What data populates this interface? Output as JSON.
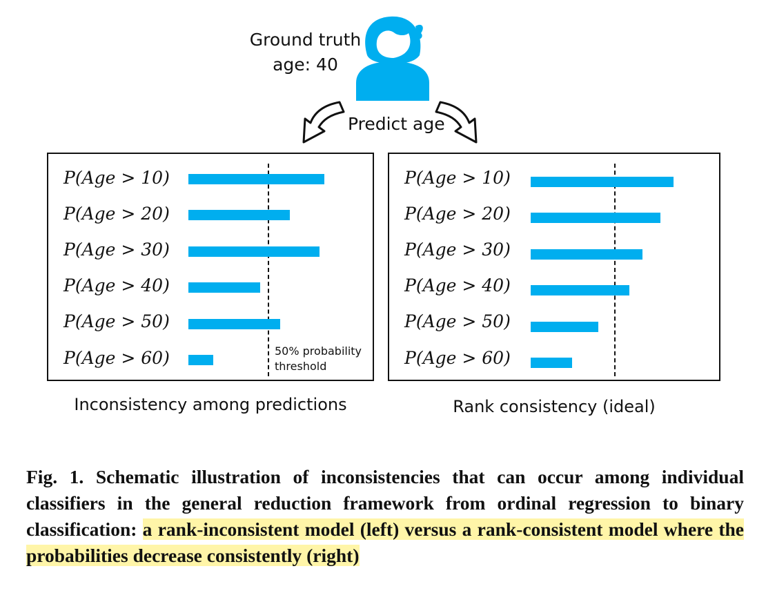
{
  "header": {
    "ground_truth_line1": "Ground truth",
    "ground_truth_line2": "age: 40",
    "predict_label": "Predict age"
  },
  "icons": {
    "person": "person-icon",
    "arrow_left": "curved-arrow-down-left-icon",
    "arrow_right": "curved-arrow-down-right-icon"
  },
  "colors": {
    "bar": "#00aeef",
    "highlight": "#fff5a8"
  },
  "panels": {
    "left": {
      "caption": "Inconsistency among predictions",
      "threshold_note_line1": "50% probability",
      "threshold_note_line2": "threshold",
      "rows": [
        {
          "label": "P(Age > 10)"
        },
        {
          "label": "P(Age > 20)"
        },
        {
          "label": "P(Age > 30)"
        },
        {
          "label": "P(Age > 40)"
        },
        {
          "label": "P(Age > 50)"
        },
        {
          "label": "P(Age > 60)"
        }
      ]
    },
    "right": {
      "caption": "Rank consistency (ideal)",
      "rows": [
        {
          "label": "P(Age > 10)"
        },
        {
          "label": "P(Age > 20)"
        },
        {
          "label": "P(Age > 30)"
        },
        {
          "label": "P(Age > 40)"
        },
        {
          "label": "P(Age > 50)"
        },
        {
          "label": "P(Age > 60)"
        }
      ]
    }
  },
  "chart_data": [
    {
      "type": "bar",
      "orientation": "horizontal",
      "categories": [
        "P(Age > 10)",
        "P(Age > 20)",
        "P(Age > 30)",
        "P(Age > 40)",
        "P(Age > 50)",
        "P(Age > 60)"
      ],
      "values": [
        0.87,
        0.65,
        0.84,
        0.46,
        0.59,
        0.16
      ],
      "threshold": 0.5,
      "xlim": [
        0,
        1
      ]
    },
    {
      "type": "bar",
      "orientation": "horizontal",
      "categories": [
        "P(Age > 10)",
        "P(Age > 20)",
        "P(Age > 30)",
        "P(Age > 40)",
        "P(Age > 50)",
        "P(Age > 60)"
      ],
      "values": [
        0.87,
        0.79,
        0.68,
        0.6,
        0.41,
        0.25
      ],
      "threshold": 0.5,
      "xlim": [
        0,
        1
      ]
    }
  ],
  "figure_caption": {
    "part1": "Fig. 1. Schematic illustration of inconsistencies that can occur among individual classifiers in the general reduction framework from ordinal regression to binary classification: ",
    "part2": "a rank-inconsistent model (left) versus a rank-consistent model where the probabilities decrease consistently (right)"
  }
}
